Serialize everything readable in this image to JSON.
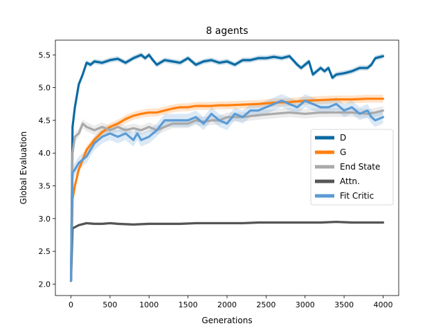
{
  "chart_data": {
    "type": "line",
    "title": "8 agents",
    "xlabel": "Generations",
    "ylabel": "Global Evaluation",
    "xlim": [
      -200,
      4200
    ],
    "ylim": [
      1.825,
      5.725
    ],
    "xticks": [
      0,
      500,
      1000,
      1500,
      2000,
      2500,
      3000,
      3500,
      4000
    ],
    "yticks": [
      2.0,
      2.5,
      3.0,
      3.5,
      4.0,
      4.5,
      5.0,
      5.5
    ],
    "xtick_labels": [
      "0",
      "500",
      "1000",
      "1500",
      "2000",
      "2500",
      "3000",
      "3500",
      "4000"
    ],
    "ytick_labels": [
      "2.0",
      "2.5",
      "3.0",
      "3.5",
      "4.0",
      "4.5",
      "5.0",
      "5.5"
    ],
    "grid": false,
    "legend_position": "center-right",
    "series": [
      {
        "name": "D",
        "color": "#0b6aa2",
        "x": [
          0,
          20,
          50,
          100,
          150,
          200,
          250,
          300,
          400,
          500,
          600,
          700,
          800,
          900,
          950,
          1000,
          1050,
          1100,
          1200,
          1300,
          1400,
          1500,
          1600,
          1700,
          1800,
          1900,
          2000,
          2100,
          2200,
          2300,
          2400,
          2500,
          2600,
          2700,
          2800,
          2900,
          2950,
          3000,
          3050,
          3100,
          3200,
          3250,
          3300,
          3350,
          3400,
          3500,
          3600,
          3700,
          3800,
          3850,
          3900,
          4000
        ],
        "y": [
          2.05,
          4.4,
          4.7,
          5.05,
          5.2,
          5.38,
          5.35,
          5.4,
          5.38,
          5.42,
          5.44,
          5.38,
          5.45,
          5.5,
          5.45,
          5.5,
          5.42,
          5.35,
          5.42,
          5.4,
          5.38,
          5.45,
          5.35,
          5.4,
          5.42,
          5.38,
          5.4,
          5.35,
          5.42,
          5.42,
          5.45,
          5.45,
          5.47,
          5.45,
          5.48,
          5.35,
          5.3,
          5.35,
          5.4,
          5.2,
          5.3,
          5.25,
          5.3,
          5.15,
          5.2,
          5.22,
          5.25,
          5.3,
          5.3,
          5.35,
          5.45,
          5.48
        ],
        "band": 0.04
      },
      {
        "name": "G",
        "color": "#ff7f0e",
        "x": [
          0,
          20,
          50,
          100,
          150,
          200,
          300,
          400,
          500,
          600,
          700,
          800,
          900,
          1000,
          1100,
          1200,
          1300,
          1400,
          1500,
          1600,
          1700,
          1800,
          1900,
          2000,
          2200,
          2400,
          2600,
          2800,
          3000,
          3200,
          3400,
          3600,
          3800,
          4000
        ],
        "y": [
          2.05,
          3.3,
          3.5,
          3.75,
          3.9,
          4.05,
          4.2,
          4.32,
          4.4,
          4.45,
          4.52,
          4.57,
          4.6,
          4.62,
          4.62,
          4.65,
          4.68,
          4.7,
          4.7,
          4.72,
          4.72,
          4.72,
          4.73,
          4.73,
          4.74,
          4.75,
          4.77,
          4.78,
          4.8,
          4.81,
          4.82,
          4.82,
          4.83,
          4.83
        ],
        "band": 0.06
      },
      {
        "name": "End State",
        "color": "#a9a9a9",
        "x": [
          0,
          20,
          50,
          100,
          150,
          200,
          300,
          400,
          500,
          600,
          700,
          800,
          900,
          1000,
          1100,
          1200,
          1300,
          1400,
          1500,
          1600,
          1700,
          1800,
          1900,
          2000,
          2200,
          2400,
          2600,
          2800,
          3000,
          3200,
          3400,
          3600,
          3800,
          3900,
          4000
        ],
        "y": [
          2.05,
          4.0,
          4.25,
          4.3,
          4.45,
          4.4,
          4.35,
          4.4,
          4.35,
          4.4,
          4.35,
          4.38,
          4.35,
          4.4,
          4.35,
          4.4,
          4.45,
          4.45,
          4.45,
          4.5,
          4.48,
          4.5,
          4.5,
          4.55,
          4.55,
          4.58,
          4.6,
          4.62,
          4.6,
          4.62,
          4.62,
          4.62,
          4.6,
          4.62,
          4.65
        ],
        "band": 0.07
      },
      {
        "name": "Attn.",
        "color": "#555555",
        "x": [
          0,
          20,
          100,
          200,
          300,
          400,
          500,
          600,
          800,
          1000,
          1200,
          1400,
          1600,
          1800,
          2000,
          2200,
          2400,
          2600,
          2800,
          3000,
          3200,
          3400,
          3600,
          3800,
          4000
        ],
        "y": [
          2.05,
          2.85,
          2.9,
          2.93,
          2.92,
          2.92,
          2.93,
          2.92,
          2.91,
          2.92,
          2.92,
          2.92,
          2.93,
          2.93,
          2.93,
          2.93,
          2.94,
          2.94,
          2.94,
          2.94,
          2.94,
          2.95,
          2.94,
          2.94,
          2.94
        ],
        "band": 0.02
      },
      {
        "name": "Fit Critic",
        "color": "#5b9bd5",
        "x": [
          0,
          20,
          50,
          100,
          150,
          200,
          250,
          300,
          400,
          500,
          600,
          700,
          800,
          850,
          900,
          1000,
          1100,
          1200,
          1300,
          1400,
          1500,
          1600,
          1700,
          1800,
          1900,
          2000,
          2100,
          2200,
          2300,
          2400,
          2500,
          2600,
          2700,
          2800,
          2900,
          3000,
          3100,
          3200,
          3300,
          3400,
          3500,
          3600,
          3700,
          3800,
          3850,
          3900,
          4000
        ],
        "y": [
          2.05,
          3.7,
          3.75,
          3.85,
          3.9,
          3.95,
          4.05,
          4.15,
          4.25,
          4.3,
          4.25,
          4.3,
          4.2,
          4.3,
          4.2,
          4.25,
          4.35,
          4.5,
          4.5,
          4.5,
          4.5,
          4.55,
          4.45,
          4.6,
          4.5,
          4.45,
          4.6,
          4.55,
          4.65,
          4.65,
          4.7,
          4.75,
          4.8,
          4.75,
          4.7,
          4.8,
          4.75,
          4.7,
          4.7,
          4.75,
          4.65,
          4.7,
          4.6,
          4.65,
          4.55,
          4.5,
          4.55
        ],
        "band": 0.1
      }
    ]
  }
}
